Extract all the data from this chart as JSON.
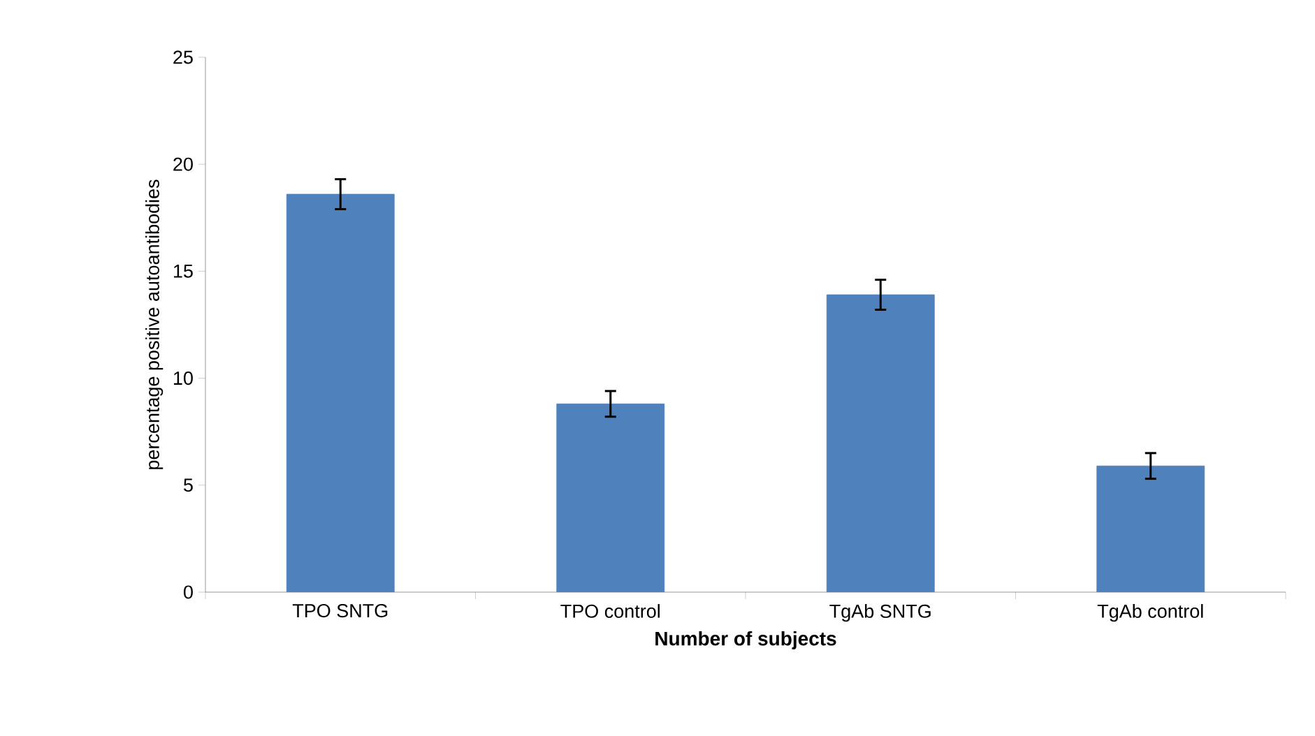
{
  "chart_data": {
    "type": "bar",
    "xlabel": "Number of subjects",
    "ylabel": "percentage positive autoantibodies",
    "categories": [
      "TPO SNTG",
      "TPO control",
      "TgAb SNTG",
      "TgAb control"
    ],
    "values": [
      18.6,
      8.8,
      13.9,
      5.9
    ],
    "errors": [
      0.7,
      0.6,
      0.7,
      0.6
    ],
    "color": "#4f81bd",
    "ylim": [
      0,
      25
    ],
    "yticks": [
      0,
      5,
      10,
      15,
      20,
      25
    ],
    "grid": false
  }
}
